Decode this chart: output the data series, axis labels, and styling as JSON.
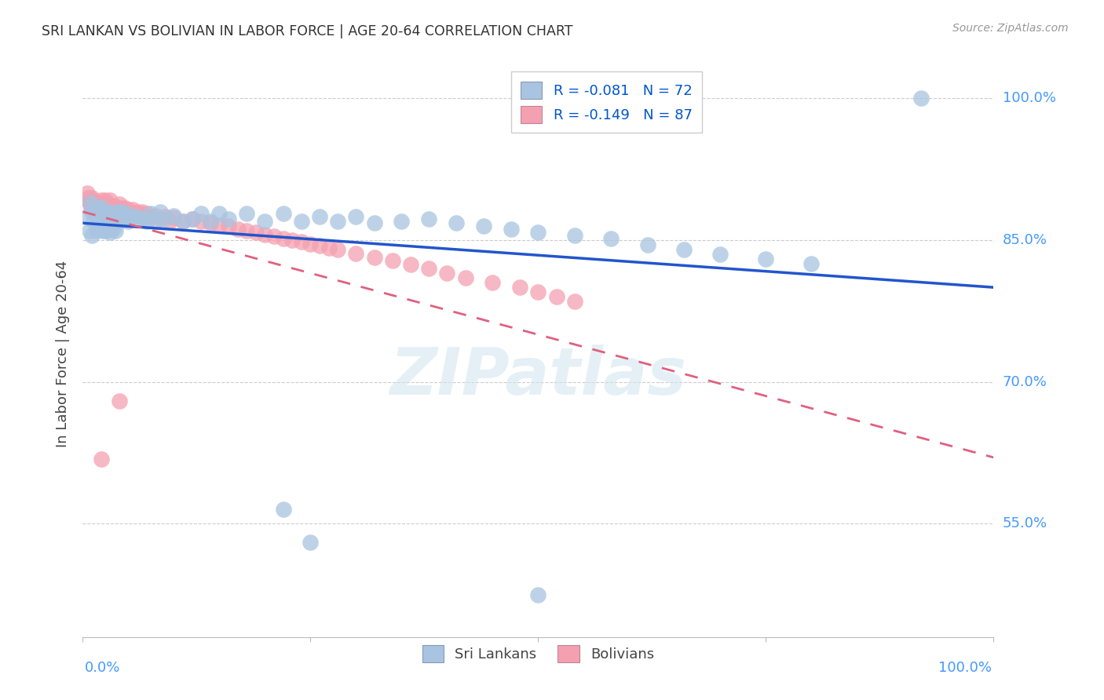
{
  "title": "SRI LANKAN VS BOLIVIAN IN LABOR FORCE | AGE 20-64 CORRELATION CHART",
  "source": "Source: ZipAtlas.com",
  "ylabel": "In Labor Force | Age 20-64",
  "ytick_vals": [
    1.0,
    0.85,
    0.7,
    0.55
  ],
  "ytick_labels": [
    "100.0%",
    "85.0%",
    "70.0%",
    "55.0%"
  ],
  "xlim": [
    0.0,
    1.0
  ],
  "ylim": [
    0.43,
    1.03
  ],
  "sri_lankan_color": "#a8c4e0",
  "bolivian_color": "#f4a0b0",
  "sri_lankan_edge": "#7aaace",
  "bolivian_edge": "#e07090",
  "sri_lankan_R": -0.081,
  "sri_lankan_N": 72,
  "bolivian_R": -0.149,
  "bolivian_N": 87,
  "legend_label_sri": "Sri Lankans",
  "legend_label_bol": "Bolivians",
  "watermark": "ZIPatlas",
  "sri_line_color": "#2255cc",
  "bol_line_color": "#e06080",
  "sri_line_y0": 0.868,
  "sri_line_y1": 0.8,
  "bol_line_y0": 0.88,
  "bol_line_y1": 0.62,
  "sri_lankans_x": [
    0.005,
    0.007,
    0.008,
    0.01,
    0.01,
    0.012,
    0.013,
    0.015,
    0.015,
    0.017,
    0.018,
    0.02,
    0.02,
    0.022,
    0.022,
    0.025,
    0.025,
    0.027,
    0.028,
    0.03,
    0.03,
    0.032,
    0.033,
    0.035,
    0.036,
    0.038,
    0.04,
    0.042,
    0.044,
    0.046,
    0.048,
    0.05,
    0.055,
    0.06,
    0.065,
    0.07,
    0.075,
    0.08,
    0.085,
    0.09,
    0.1,
    0.11,
    0.12,
    0.13,
    0.14,
    0.15,
    0.16,
    0.18,
    0.2,
    0.22,
    0.24,
    0.26,
    0.28,
    0.3,
    0.32,
    0.35,
    0.38,
    0.41,
    0.44,
    0.47,
    0.5,
    0.54,
    0.58,
    0.62,
    0.66,
    0.7,
    0.75,
    0.8,
    0.92,
    0.22,
    0.25,
    0.5
  ],
  "sri_lankans_y": [
    0.875,
    0.86,
    0.89,
    0.88,
    0.855,
    0.87,
    0.885,
    0.88,
    0.86,
    0.875,
    0.865,
    0.885,
    0.865,
    0.88,
    0.86,
    0.88,
    0.86,
    0.875,
    0.865,
    0.88,
    0.858,
    0.875,
    0.862,
    0.875,
    0.86,
    0.88,
    0.87,
    0.88,
    0.875,
    0.872,
    0.878,
    0.87,
    0.875,
    0.875,
    0.872,
    0.87,
    0.878,
    0.87,
    0.88,
    0.872,
    0.876,
    0.87,
    0.872,
    0.878,
    0.87,
    0.878,
    0.872,
    0.878,
    0.87,
    0.878,
    0.87,
    0.875,
    0.87,
    0.875,
    0.868,
    0.87,
    0.872,
    0.868,
    0.865,
    0.862,
    0.858,
    0.855,
    0.852,
    0.845,
    0.84,
    0.835,
    0.83,
    0.825,
    1.0,
    0.565,
    0.53,
    0.475
  ],
  "bolivians_x": [
    0.005,
    0.006,
    0.007,
    0.008,
    0.009,
    0.01,
    0.01,
    0.011,
    0.012,
    0.013,
    0.014,
    0.015,
    0.016,
    0.017,
    0.018,
    0.019,
    0.02,
    0.02,
    0.021,
    0.022,
    0.023,
    0.024,
    0.025,
    0.025,
    0.026,
    0.027,
    0.028,
    0.03,
    0.03,
    0.032,
    0.033,
    0.035,
    0.036,
    0.038,
    0.04,
    0.04,
    0.042,
    0.044,
    0.046,
    0.048,
    0.05,
    0.052,
    0.055,
    0.058,
    0.06,
    0.063,
    0.065,
    0.068,
    0.07,
    0.075,
    0.08,
    0.085,
    0.09,
    0.095,
    0.1,
    0.11,
    0.12,
    0.13,
    0.14,
    0.15,
    0.16,
    0.17,
    0.18,
    0.19,
    0.2,
    0.21,
    0.22,
    0.23,
    0.24,
    0.25,
    0.26,
    0.27,
    0.28,
    0.3,
    0.32,
    0.34,
    0.36,
    0.38,
    0.4,
    0.42,
    0.45,
    0.48,
    0.5,
    0.52,
    0.54,
    0.02,
    0.04
  ],
  "bolivians_y": [
    0.9,
    0.895,
    0.89,
    0.888,
    0.885,
    0.895,
    0.882,
    0.892,
    0.888,
    0.885,
    0.882,
    0.89,
    0.886,
    0.882,
    0.888,
    0.884,
    0.892,
    0.88,
    0.888,
    0.885,
    0.882,
    0.888,
    0.892,
    0.88,
    0.886,
    0.882,
    0.888,
    0.892,
    0.878,
    0.886,
    0.882,
    0.886,
    0.88,
    0.884,
    0.888,
    0.876,
    0.884,
    0.88,
    0.884,
    0.878,
    0.882,
    0.878,
    0.882,
    0.878,
    0.88,
    0.876,
    0.88,
    0.875,
    0.878,
    0.875,
    0.876,
    0.872,
    0.875,
    0.87,
    0.874,
    0.87,
    0.872,
    0.87,
    0.868,
    0.866,
    0.865,
    0.862,
    0.86,
    0.858,
    0.856,
    0.854,
    0.852,
    0.85,
    0.848,
    0.846,
    0.844,
    0.842,
    0.84,
    0.836,
    0.832,
    0.828,
    0.824,
    0.82,
    0.815,
    0.81,
    0.805,
    0.8,
    0.795,
    0.79,
    0.785,
    0.618,
    0.68
  ]
}
